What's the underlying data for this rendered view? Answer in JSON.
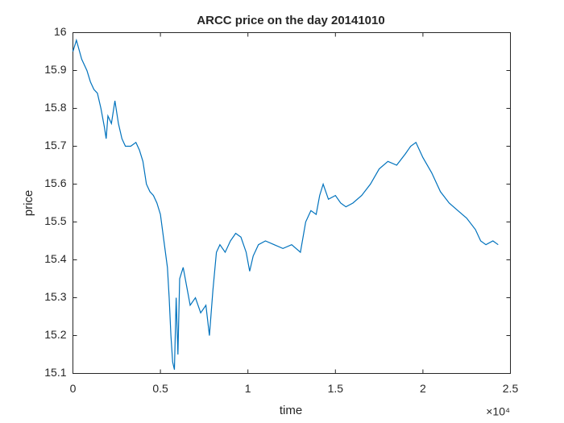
{
  "chart_data": {
    "type": "line",
    "title": "ARCC price on the day 20141010",
    "x_label": "time",
    "y_label": "price",
    "x_exponent_label": "×10⁴",
    "x": [
      0,
      200,
      500,
      800,
      1000,
      1200,
      1400,
      1600,
      1800,
      1900,
      2000,
      2200,
      2400,
      2600,
      2800,
      3000,
      3300,
      3600,
      3800,
      4000,
      4200,
      4400,
      4600,
      4800,
      5000,
      5200,
      5400,
      5500,
      5600,
      5700,
      5800,
      5900,
      6000,
      6100,
      6300,
      6500,
      6700,
      7000,
      7300,
      7600,
      7800,
      8000,
      8200,
      8400,
      8700,
      9000,
      9300,
      9600,
      9900,
      10100,
      10300,
      10600,
      11000,
      11500,
      12000,
      12500,
      13000,
      13300,
      13600,
      13900,
      14100,
      14300,
      14600,
      15000,
      15300,
      15600,
      16000,
      16500,
      17000,
      17500,
      18000,
      18500,
      19000,
      19300,
      19600,
      20000,
      20500,
      21000,
      21500,
      22000,
      22500,
      23000,
      23300,
      23600,
      24000,
      24300
    ],
    "series": [
      {
        "name": "ARCC",
        "color": "#0072bd",
        "values": [
          15.95,
          15.98,
          15.93,
          15.9,
          15.87,
          15.85,
          15.84,
          15.8,
          15.75,
          15.72,
          15.78,
          15.76,
          15.82,
          15.76,
          15.72,
          15.7,
          15.7,
          15.71,
          15.69,
          15.66,
          15.6,
          15.58,
          15.57,
          15.55,
          15.52,
          15.45,
          15.38,
          15.3,
          15.2,
          15.13,
          15.11,
          15.3,
          15.15,
          15.35,
          15.38,
          15.33,
          15.28,
          15.3,
          15.26,
          15.28,
          15.2,
          15.32,
          15.42,
          15.44,
          15.42,
          15.45,
          15.47,
          15.46,
          15.42,
          15.37,
          15.41,
          15.44,
          15.45,
          15.44,
          15.43,
          15.44,
          15.42,
          15.5,
          15.53,
          15.52,
          15.57,
          15.6,
          15.56,
          15.57,
          15.55,
          15.54,
          15.55,
          15.57,
          15.6,
          15.64,
          15.66,
          15.65,
          15.68,
          15.7,
          15.71,
          15.67,
          15.63,
          15.58,
          15.55,
          15.53,
          15.51,
          15.48,
          15.45,
          15.44,
          15.45,
          15.44
        ]
      }
    ],
    "xlim": [
      0,
      25000
    ],
    "xticks": [
      0,
      {
        "value": 5000,
        "label": "0.5"
      },
      {
        "value": 10000,
        "label": "1"
      },
      {
        "value": 15000,
        "label": "1.5"
      },
      {
        "value": 20000,
        "label": "2"
      },
      {
        "value": 25000,
        "label": "2.5"
      }
    ],
    "ylim": [
      15.1,
      16
    ],
    "yticks": [
      15.1,
      15.2,
      15.3,
      15.4,
      15.5,
      15.6,
      15.7,
      15.8,
      15.9,
      16
    ],
    "grid": false
  }
}
